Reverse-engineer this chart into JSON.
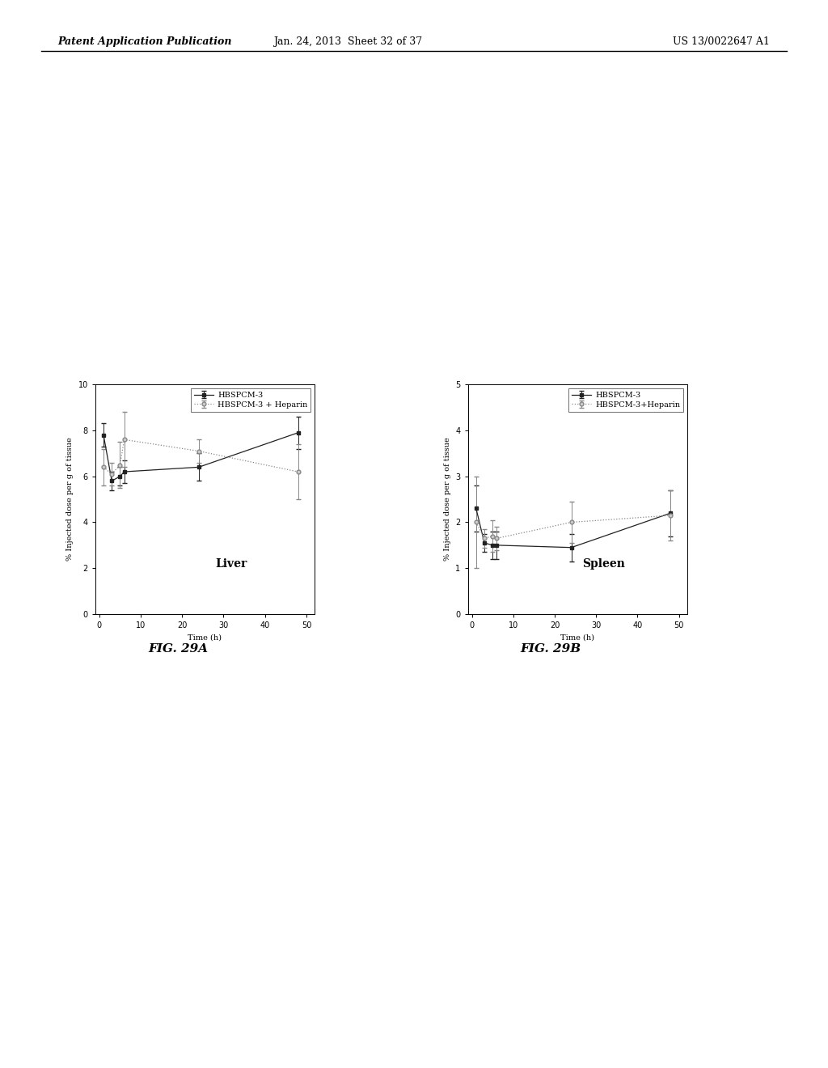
{
  "header_left": "Patent Application Publication",
  "header_center": "Jan. 24, 2013  Sheet 32 of 37",
  "header_right": "US 13/0022647 A1",
  "fig_caption_a": "FIG. 29A",
  "fig_caption_b": "FIG. 29B",
  "liver": {
    "title": "Liver",
    "xlabel": "Time (h)",
    "ylabel": "% Injected dose per g of tissue",
    "xlim": [
      -1,
      52
    ],
    "ylim": [
      0,
      10
    ],
    "yticks": [
      0,
      2,
      4,
      6,
      8,
      10
    ],
    "xticks": [
      0,
      10,
      20,
      30,
      40,
      50
    ],
    "series1": {
      "label": "HBSPCM-3",
      "x": [
        1,
        3,
        5,
        6,
        24,
        48
      ],
      "y": [
        7.8,
        5.8,
        6.0,
        6.2,
        6.4,
        7.9
      ],
      "yerr": [
        0.5,
        0.4,
        0.4,
        0.5,
        0.6,
        0.7
      ],
      "color": "#222222",
      "linestyle": "-",
      "marker": "s"
    },
    "series2": {
      "label": "HBSPCM-3 + Heparin",
      "x": [
        1,
        3,
        5,
        6,
        24,
        48
      ],
      "y": [
        6.4,
        6.1,
        6.5,
        7.6,
        7.1,
        6.2
      ],
      "yerr": [
        0.8,
        0.5,
        1.0,
        1.2,
        0.5,
        1.2
      ],
      "color": "#888888",
      "linestyle": ":",
      "marker": "o"
    }
  },
  "spleen": {
    "title": "Spleen",
    "xlabel": "Time (h)",
    "ylabel": "% Injected dose per g of tissue",
    "xlim": [
      -1,
      52
    ],
    "ylim": [
      0,
      5
    ],
    "yticks": [
      0,
      1,
      2,
      3,
      4,
      5
    ],
    "xticks": [
      0,
      10,
      20,
      30,
      40,
      50
    ],
    "series1": {
      "label": "HBSPCM-3",
      "x": [
        1,
        3,
        5,
        6,
        24,
        48
      ],
      "y": [
        2.3,
        1.55,
        1.5,
        1.5,
        1.45,
        2.2
      ],
      "yerr": [
        0.5,
        0.2,
        0.3,
        0.3,
        0.3,
        0.5
      ],
      "color": "#222222",
      "linestyle": "-",
      "marker": "s"
    },
    "series2": {
      "label": "HBSPCM-3+Heparin",
      "x": [
        1,
        3,
        5,
        6,
        24,
        48
      ],
      "y": [
        2.0,
        1.65,
        1.7,
        1.65,
        2.0,
        2.15
      ],
      "yerr": [
        1.0,
        0.2,
        0.35,
        0.25,
        0.45,
        0.55
      ],
      "color": "#888888",
      "linestyle": ":",
      "marker": "o"
    }
  },
  "background_color": "#ffffff",
  "font_size_header": 9,
  "font_size_label": 7,
  "font_size_tick": 7,
  "font_size_legend": 7,
  "font_size_title": 10,
  "font_size_caption": 11
}
